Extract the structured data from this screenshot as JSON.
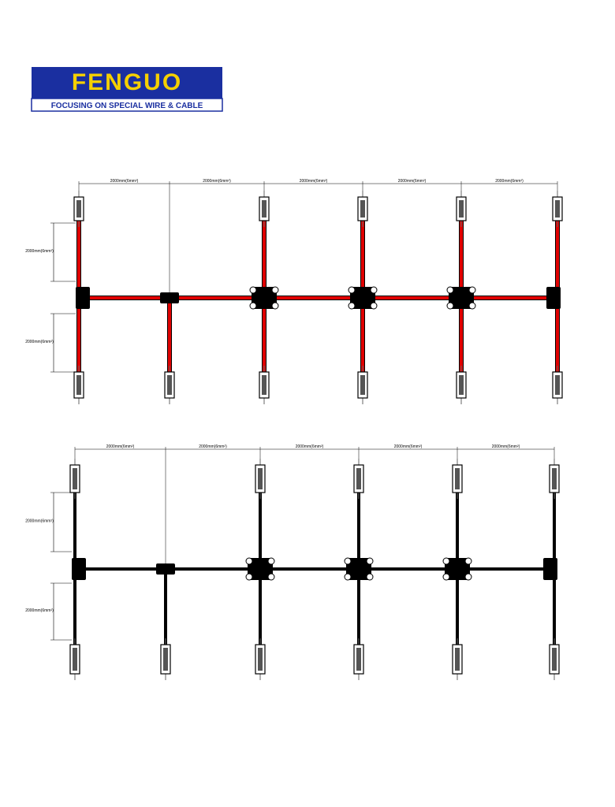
{
  "header": {
    "logo": "FENGUO",
    "tagline": "FOCUSING ON SPECIAL WIRE & CABLE"
  },
  "diagrams": [
    {
      "horizontal_dims": [
        "2000mm(6mm²)",
        "2000mm(6mm²)",
        "2000mm(6mm²)",
        "2000mm(6mm²)",
        "2000mm(6mm²)"
      ],
      "vertical_dims": [
        "2000mm(6mm²)",
        "2000mm(6mm²)"
      ]
    },
    {
      "horizontal_dims": [
        "2000mm(6mm²)",
        "2000mm(6mm²)",
        "2000mm(6mm²)",
        "2000mm(6mm²)",
        "2000mm(6mm²)"
      ],
      "vertical_dims": [
        "2000mm(6mm²)",
        "2000mm(6mm²)"
      ]
    }
  ]
}
